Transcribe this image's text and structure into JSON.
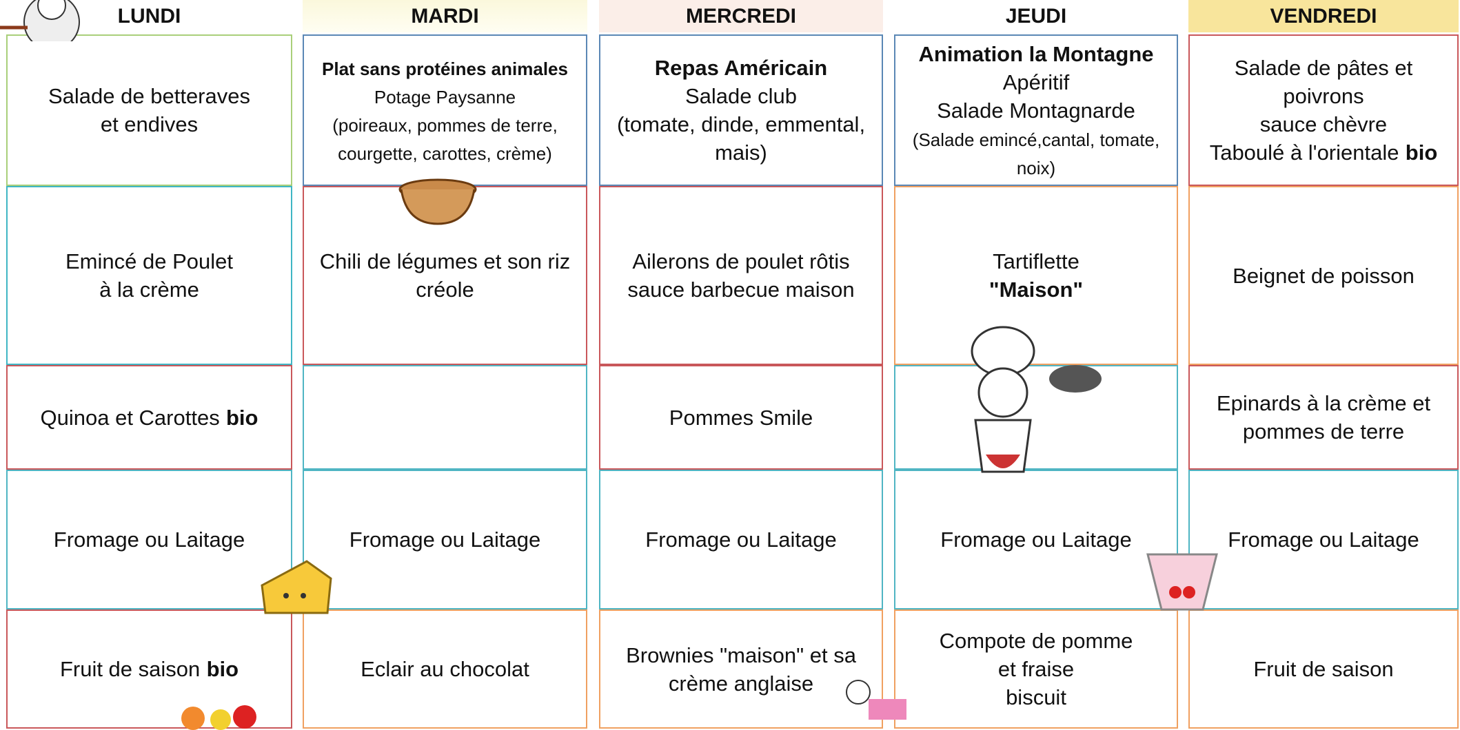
{
  "days": [
    {
      "name": "LUNDI",
      "cells": [
        {
          "lines": [
            [
              {
                "text": "Salade de betteraves"
              }
            ],
            [
              {
                "text": "et endives"
              }
            ]
          ]
        },
        {
          "lines": [
            [
              {
                "text": "Emincé de Poulet"
              }
            ],
            [
              {
                "text": "à la crème"
              }
            ]
          ]
        },
        {
          "lines": [
            [
              {
                "text": "Quinoa et Carottes"
              },
              {
                "text": "bio",
                "bold": true
              }
            ]
          ]
        },
        {
          "lines": [
            [
              {
                "text": "Fromage ou Laitage"
              }
            ]
          ]
        },
        {
          "lines": [
            [
              {
                "text": "Fruit de saison"
              },
              {
                "text": "bio",
                "bold": true
              }
            ]
          ]
        }
      ]
    },
    {
      "name": "MARDI",
      "cells": [
        {
          "lines": [
            [
              {
                "text": "Plat sans protéines animales",
                "bold": true,
                "small": true
              }
            ],
            [
              {
                "text": "Potage Paysanne",
                "small": true
              }
            ],
            [
              {
                "text": "(poireaux, pommes de terre,",
                "small": true
              }
            ],
            [
              {
                "text": "courgette, carottes, crème)",
                "small": true
              }
            ]
          ]
        },
        {
          "lines": [
            [
              {
                "text": "Chili de légumes et son riz"
              }
            ],
            [
              {
                "text": "créole"
              }
            ]
          ]
        },
        {
          "lines": []
        },
        {
          "lines": [
            [
              {
                "text": "Fromage ou Laitage"
              }
            ]
          ]
        },
        {
          "lines": [
            [
              {
                "text": "Eclair au chocolat"
              }
            ]
          ]
        }
      ]
    },
    {
      "name": "MERCREDI",
      "cells": [
        {
          "lines": [
            [
              {
                "text": "Repas Américain",
                "bold": true
              }
            ],
            [
              {
                "text": "Salade club"
              }
            ],
            [
              {
                "text": "(tomate, dinde, emmental,"
              }
            ],
            [
              {
                "text": "mais)"
              }
            ]
          ]
        },
        {
          "lines": [
            [
              {
                "text": "Ailerons de poulet rôtis"
              }
            ],
            [
              {
                "text": "sauce barbecue maison"
              }
            ]
          ]
        },
        {
          "lines": [
            [
              {
                "text": "Pommes Smile"
              }
            ]
          ]
        },
        {
          "lines": [
            [
              {
                "text": "Fromage ou Laitage"
              }
            ]
          ]
        },
        {
          "lines": [
            [
              {
                "text": "Brownies \"maison\" et sa"
              }
            ],
            [
              {
                "text": "crème anglaise"
              }
            ]
          ]
        }
      ]
    },
    {
      "name": "JEUDI",
      "cells": [
        {
          "lines": [
            [
              {
                "text": "Animation la Montagne",
                "bold": true
              }
            ],
            [
              {
                "text": "Apéritif"
              }
            ],
            [
              {
                "text": "Salade Montagnarde"
              }
            ],
            [
              {
                "text": "(Salade emincé,cantal, tomate,",
                "small": true
              }
            ],
            [
              {
                "text": "noix)",
                "small": true
              }
            ]
          ]
        },
        {
          "lines": [
            [
              {
                "text": "Tartiflette"
              }
            ],
            [
              {
                "text": "\"Maison\"",
                "bold": true
              }
            ]
          ]
        },
        {
          "lines": []
        },
        {
          "lines": [
            [
              {
                "text": "Fromage ou Laitage"
              }
            ]
          ]
        },
        {
          "lines": [
            [
              {
                "text": "Compote de pomme"
              }
            ],
            [
              {
                "text": "et fraise"
              }
            ],
            [
              {
                "text": "biscuit"
              }
            ]
          ]
        }
      ]
    },
    {
      "name": "VENDREDI",
      "cells": [
        {
          "lines": [
            [
              {
                "text": "Salade de pâtes et"
              }
            ],
            [
              {
                "text": "poivrons"
              }
            ],
            [
              {
                "text": "sauce chèvre"
              }
            ],
            [
              {
                "text": "Taboulé à l'orientale"
              },
              {
                "text": "bio",
                "bold": true
              }
            ]
          ]
        },
        {
          "lines": [
            [
              {
                "text": "Beignet de poisson"
              }
            ]
          ]
        },
        {
          "lines": [
            [
              {
                "text": "Epinards à la crème et"
              }
            ],
            [
              {
                "text": "pommes de terre"
              }
            ]
          ]
        },
        {
          "lines": [
            [
              {
                "text": "Fromage ou Laitage"
              }
            ]
          ]
        },
        {
          "lines": [
            [
              {
                "text": "Fruit de saison"
              }
            ]
          ]
        }
      ]
    }
  ]
}
